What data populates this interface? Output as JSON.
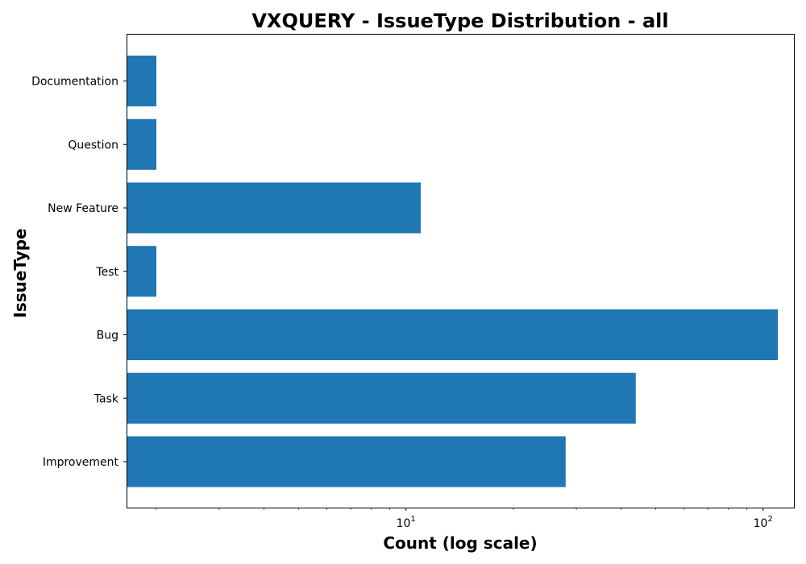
{
  "chart_data": {
    "type": "bar",
    "orientation": "horizontal",
    "title": "VXQUERY - IssueType Distribution - all",
    "xlabel": "Count (log scale)",
    "ylabel": "IssueType",
    "x_scale": "log",
    "xlim": [
      1.65,
      122
    ],
    "x_ticks": [
      {
        "value": 10,
        "base": "10",
        "exp": "1"
      },
      {
        "value": 100,
        "base": "10",
        "exp": "2"
      }
    ],
    "categories": [
      "Improvement",
      "Task",
      "Bug",
      "Test",
      "New Feature",
      "Question",
      "Documentation"
    ],
    "values": [
      28,
      44,
      110,
      2,
      11,
      2,
      2
    ],
    "bar_color": "#1f77b4",
    "grid": false,
    "legend": false
  }
}
